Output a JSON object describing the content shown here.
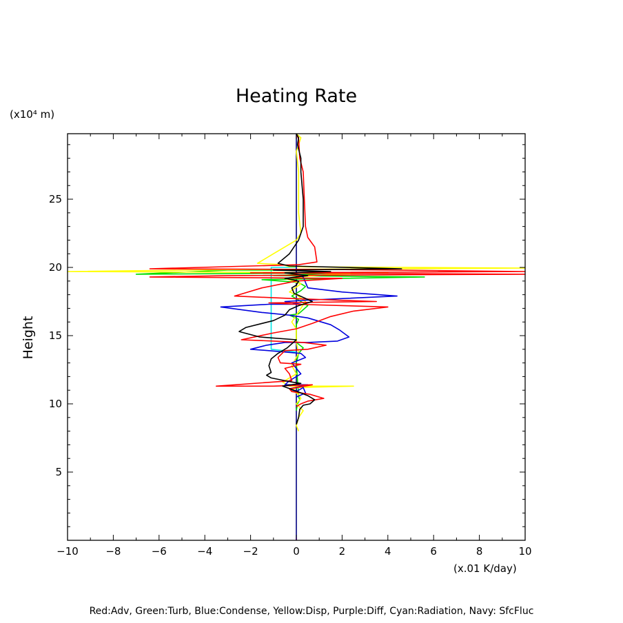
{
  "chart_data": {
    "type": "line",
    "title": "Heating Rate",
    "xlabel": "(x.01 K/day)",
    "ylabel": "Height",
    "yunit": "(x10⁴ m)",
    "xlim": [
      -10,
      10
    ],
    "ylim": [
      0,
      29.8
    ],
    "x_ticks": [
      -10,
      -8,
      -6,
      -4,
      -2,
      0,
      2,
      4,
      6,
      8,
      10
    ],
    "y_ticks": [
      5,
      10,
      15,
      20,
      25
    ],
    "legend_text": "Red:Adv, Green:Turb, Blue:Condense, Yellow:Disp, Purple:Diff, Cyan:Radiation, Navy: SfcFluc",
    "series": [
      {
        "name": "Navy: SfcFluc",
        "color": "#000080",
        "points": [
          [
            0,
            0
          ],
          [
            0,
            29.8
          ]
        ]
      },
      {
        "name": "Cyan:Radiation",
        "color": "#00e5e5",
        "points": [
          [
            0,
            20
          ],
          [
            -1.1,
            20
          ],
          [
            -1.1,
            14.0
          ],
          [
            0,
            13.8
          ]
        ]
      },
      {
        "name": "Purple:Diff",
        "color": "#a020f0",
        "points": [
          [
            0,
            0
          ],
          [
            0,
            0.2
          ]
        ]
      },
      {
        "name": "Green:Turb",
        "color": "#00dd00",
        "points": [
          [
            0,
            20.1
          ],
          [
            0,
            19.8
          ],
          [
            -3,
            19.8
          ],
          [
            -7,
            19.5
          ],
          [
            2,
            19.6
          ],
          [
            -1,
            19.4
          ],
          [
            5.6,
            19.3
          ],
          [
            -1.5,
            19.1
          ],
          [
            0.1,
            18.9
          ],
          [
            0.4,
            18.6
          ],
          [
            0.2,
            18.3
          ],
          [
            -0.2,
            17.9
          ],
          [
            0.5,
            17.2
          ],
          [
            0.1,
            16.6
          ],
          [
            -0.3,
            16.5
          ],
          [
            0.1,
            16.2
          ],
          [
            0,
            15.8
          ],
          [
            0,
            14.5
          ],
          [
            0.3,
            14.1
          ],
          [
            0.1,
            13.7
          ],
          [
            0,
            13
          ],
          [
            0.1,
            10.5
          ],
          [
            0.15,
            10.3
          ],
          [
            0.05,
            10.0
          ],
          [
            0,
            9.5
          ]
        ]
      },
      {
        "name": "Yellow:Disp",
        "color": "#ffff00",
        "points": [
          [
            0,
            29.8
          ],
          [
            0.2,
            29.5
          ],
          [
            0.1,
            29.0
          ],
          [
            0,
            28.5
          ],
          [
            0.1,
            27
          ],
          [
            0.1,
            24
          ],
          [
            0.2,
            22.5
          ],
          [
            0,
            22
          ],
          [
            -1,
            21
          ],
          [
            -1.7,
            20.3
          ],
          [
            -0.6,
            20.2
          ],
          [
            -0.3,
            20.05
          ],
          [
            10,
            19.95
          ],
          [
            -2,
            19.85
          ],
          [
            -10,
            19.7
          ],
          [
            4,
            19.6
          ],
          [
            1.5,
            19.5
          ],
          [
            -0.5,
            19.2
          ],
          [
            0.2,
            18.8
          ],
          [
            -0.3,
            18.2
          ],
          [
            0,
            18
          ],
          [
            0.4,
            17.5
          ],
          [
            0.2,
            17.0
          ],
          [
            0,
            16.5
          ],
          [
            -0.2,
            16.0
          ],
          [
            0,
            15.5
          ],
          [
            0,
            14.5
          ],
          [
            0.1,
            13.7
          ],
          [
            -0.2,
            12.8
          ],
          [
            0,
            12.2
          ],
          [
            -0.6,
            11.6
          ],
          [
            -0.3,
            11.3
          ],
          [
            2.5,
            11.3
          ],
          [
            0,
            11.2
          ],
          [
            -0.2,
            11.0
          ],
          [
            0.1,
            10.7
          ],
          [
            0.2,
            10.4
          ],
          [
            0,
            10
          ],
          [
            0.3,
            9.5
          ],
          [
            0.1,
            9
          ],
          [
            0,
            8.4
          ],
          [
            0.1,
            8
          ]
        ]
      },
      {
        "name": "Blue:Condense",
        "color": "#0000dd",
        "points": [
          [
            0,
            20.2
          ],
          [
            0,
            19.5
          ],
          [
            0.3,
            19.3
          ],
          [
            0.5,
            18.5
          ],
          [
            2,
            18.2
          ],
          [
            4.4,
            17.9
          ],
          [
            0.5,
            17.6
          ],
          [
            -0.5,
            17.5
          ],
          [
            0.2,
            17.3
          ],
          [
            -1.2,
            17.3
          ],
          [
            -3.3,
            17.1
          ],
          [
            -1.5,
            16.7
          ],
          [
            -0.3,
            16.5
          ],
          [
            0.5,
            16.3
          ],
          [
            1.5,
            15.8
          ],
          [
            1.9,
            15.4
          ],
          [
            2.3,
            14.9
          ],
          [
            1.8,
            14.6
          ],
          [
            0.5,
            14.5
          ],
          [
            -0.5,
            14.5
          ],
          [
            -1.3,
            14.3
          ],
          [
            -2.0,
            14.0
          ],
          [
            -1.2,
            13.9
          ],
          [
            0.2,
            13.7
          ],
          [
            0.4,
            13.4
          ],
          [
            -0.2,
            13.0
          ],
          [
            0,
            12.6
          ],
          [
            0.2,
            12.2
          ],
          [
            -0.3,
            11.7
          ],
          [
            -0.5,
            11.4
          ],
          [
            0.5,
            11.4
          ],
          [
            -0.3,
            11.1
          ],
          [
            0,
            10.9
          ],
          [
            0.3,
            11.2
          ],
          [
            0.4,
            10.8
          ],
          [
            0,
            10.5
          ]
        ]
      },
      {
        "name": "Red:Adv",
        "color": "#ff0000",
        "points": [
          [
            0,
            29.8
          ],
          [
            0.1,
            29.4
          ],
          [
            0.15,
            28
          ],
          [
            0.3,
            27
          ],
          [
            0.35,
            25
          ],
          [
            0.4,
            23
          ],
          [
            0.5,
            22.2
          ],
          [
            0.8,
            21.5
          ],
          [
            0.9,
            20.4
          ],
          [
            0.1,
            20.2
          ],
          [
            -6.4,
            19.9
          ],
          [
            1.5,
            19.85
          ],
          [
            10,
            19.7
          ],
          [
            -2,
            19.6
          ],
          [
            10,
            19.5
          ],
          [
            -3,
            19.4
          ],
          [
            -6.4,
            19.3
          ],
          [
            2,
            19.2
          ],
          [
            0,
            19
          ],
          [
            -1.5,
            18.5
          ],
          [
            -2.7,
            17.9
          ],
          [
            0.1,
            17.7
          ],
          [
            3.5,
            17.5
          ],
          [
            -1.2,
            17.4
          ],
          [
            0,
            17.3
          ],
          [
            4.0,
            17.1
          ],
          [
            2.5,
            16.8
          ],
          [
            1.5,
            16.4
          ],
          [
            0.7,
            15.9
          ],
          [
            0,
            15.5
          ],
          [
            -1,
            15.2
          ],
          [
            -2.4,
            14.7
          ],
          [
            -1,
            14.6
          ],
          [
            0.3,
            14.5
          ],
          [
            1.3,
            14.3
          ],
          [
            0.5,
            14.0
          ],
          [
            -0.5,
            13.9
          ],
          [
            -0.8,
            13.4
          ],
          [
            -0.7,
            13.0
          ],
          [
            0.2,
            12.9
          ],
          [
            -0.5,
            12.6
          ],
          [
            -0.3,
            12.2
          ],
          [
            -0.2,
            11.7
          ],
          [
            -3.5,
            11.3
          ],
          [
            -1,
            11.3
          ],
          [
            0.7,
            11.4
          ],
          [
            -0.3,
            11.1
          ],
          [
            -0.2,
            10.9
          ],
          [
            0.6,
            10.7
          ],
          [
            1.2,
            10.4
          ],
          [
            0.5,
            10.2
          ],
          [
            0.2,
            10
          ],
          [
            0,
            9.8
          ]
        ]
      },
      {
        "name": "Black",
        "color": "#000000",
        "points": [
          [
            0,
            29.8
          ],
          [
            0.1,
            29.5
          ],
          [
            0.05,
            29
          ],
          [
            0.2,
            28
          ],
          [
            0.2,
            27
          ],
          [
            0.3,
            25
          ],
          [
            0.3,
            23
          ],
          [
            0.1,
            22
          ],
          [
            -0.3,
            21
          ],
          [
            -0.8,
            20.3
          ],
          [
            -0.3,
            20.1
          ],
          [
            4.6,
            19.9
          ],
          [
            -1,
            19.8
          ],
          [
            1.5,
            19.7
          ],
          [
            -0.5,
            19.6
          ],
          [
            0.5,
            19.4
          ],
          [
            -0.5,
            19.2
          ],
          [
            0.1,
            19
          ],
          [
            0,
            18.7
          ],
          [
            -0.2,
            18.5
          ],
          [
            -0.1,
            18.1
          ],
          [
            0.7,
            17.5
          ],
          [
            0.1,
            17.2
          ],
          [
            -0.3,
            16.9
          ],
          [
            -0.5,
            16.5
          ],
          [
            -1.0,
            16.1
          ],
          [
            -2.2,
            15.6
          ],
          [
            -2.5,
            15.3
          ],
          [
            -1.6,
            14.9
          ],
          [
            0,
            14.7
          ],
          [
            -0.4,
            14.1
          ],
          [
            -0.8,
            13.7
          ],
          [
            -1.1,
            13.3
          ],
          [
            -1.2,
            12.8
          ],
          [
            -1.1,
            12.3
          ],
          [
            -1.3,
            12.1
          ],
          [
            -1.1,
            11.9
          ],
          [
            -0.5,
            11.7
          ],
          [
            -0.2,
            11.6
          ],
          [
            0.2,
            11.5
          ],
          [
            -0.6,
            11.3
          ],
          [
            -0.1,
            11.0
          ],
          [
            0.5,
            10.6
          ],
          [
            0.8,
            10.3
          ],
          [
            0.6,
            10.0
          ],
          [
            0.3,
            9.9
          ],
          [
            0.15,
            9.6
          ],
          [
            0.1,
            9.0
          ],
          [
            0,
            8.5
          ]
        ]
      }
    ]
  }
}
